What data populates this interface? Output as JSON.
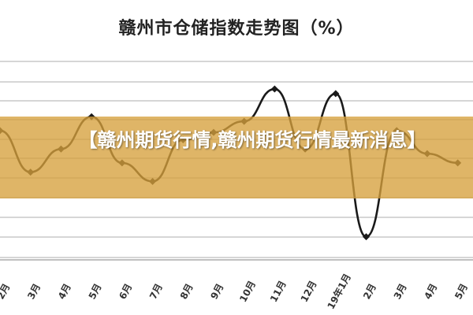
{
  "chart_data": {
    "type": "line",
    "title": "赣州市仓储指数走势图（%）",
    "categories": [
      "2月",
      "3月",
      "4月",
      "5月",
      "6月",
      "7月",
      "8月",
      "9月",
      "10月",
      "11月",
      "12月",
      "19年1月",
      "2月",
      "3月",
      "4月",
      "5月"
    ],
    "visible_tick_labels": [
      "2月",
      "3月",
      "4月",
      "5月",
      "6月",
      "7月",
      "8月",
      "9月",
      "10月",
      "11月",
      "12月",
      "19年1月",
      "2月",
      "3月",
      "4月",
      "5月"
    ],
    "series": [
      {
        "values": [
          52.0,
          47.5,
          50.0,
          53.5,
          48.5,
          46.5,
          51.0,
          51.8,
          53.0,
          56.5,
          50.0,
          56.0,
          40.5,
          52.0,
          49.5,
          48.5
        ]
      }
    ],
    "ylim": [
      38,
      60
    ],
    "grid": true,
    "line_color": "#1a1a1a",
    "grid_color": "#c8c8c8"
  },
  "banner": {
    "text": "【赣州期货行情,赣州期货行情最新消息】",
    "color": "#d6a03c"
  }
}
